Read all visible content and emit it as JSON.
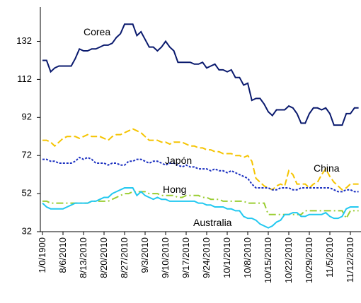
{
  "chart_data": {
    "type": "line",
    "categories": [
      "1/0/1900",
      null,
      null,
      null,
      null,
      "8/6/2010",
      null,
      null,
      null,
      null,
      "8/13/2010",
      null,
      null,
      null,
      null,
      "8/20/2010",
      null,
      null,
      null,
      null,
      "8/27/2010",
      null,
      null,
      null,
      null,
      "9/3/2010",
      null,
      null,
      null,
      null,
      "9/10/2010",
      null,
      null,
      null,
      null,
      "9/17/2010",
      null,
      null,
      null,
      null,
      "9/24/2010",
      null,
      null,
      null,
      null,
      "10/1/2010",
      null,
      null,
      null,
      null,
      "10/8/2010",
      null,
      null,
      null,
      null,
      "10/15/2010",
      null,
      null,
      null,
      null,
      "10/22/2010",
      null,
      null,
      null,
      null,
      "10/29/2010",
      null,
      null,
      null,
      null,
      "11/5/2010",
      null,
      null,
      null,
      null,
      "11/12/2010",
      null,
      null
    ],
    "series": [
      {
        "name": "Corea",
        "color": "#0a1a6e",
        "style": "solid",
        "values": [
          122,
          122,
          116,
          118,
          119,
          119,
          119,
          119,
          123,
          128,
          127,
          127,
          128,
          128,
          129,
          130,
          130,
          131,
          134,
          136,
          141,
          141,
          141,
          135,
          137,
          133,
          129,
          129,
          127,
          129,
          132,
          129,
          127,
          121,
          121,
          121,
          121,
          120,
          120,
          121,
          118,
          119,
          120,
          117,
          117,
          116,
          117,
          113,
          113,
          109,
          110,
          101,
          102,
          102,
          99,
          95,
          93,
          96,
          96,
          96,
          98,
          97,
          94,
          89,
          89,
          94,
          97,
          97,
          96,
          97,
          94,
          88,
          88,
          88,
          94,
          94,
          97,
          97
        ]
      },
      {
        "name": "China",
        "color": "#f5c400",
        "style": "dashed",
        "values": [
          80,
          80,
          79,
          77,
          79,
          81,
          82,
          82,
          82,
          81,
          82,
          83,
          82,
          82,
          82,
          81,
          80,
          82,
          83,
          83,
          84,
          85,
          86,
          85,
          84,
          82,
          80,
          80,
          80,
          79,
          79,
          78,
          79,
          79,
          79,
          78,
          77,
          77,
          76,
          76,
          75,
          75,
          74,
          74,
          73,
          73,
          73,
          72,
          72,
          71,
          72,
          69,
          60,
          58,
          56,
          55,
          54,
          56,
          57,
          56,
          64,
          62,
          57,
          57,
          57,
          55,
          57,
          58,
          62,
          65,
          61,
          58,
          56,
          54,
          55,
          57,
          57,
          57
        ]
      },
      {
        "name": "Japón",
        "color": "#1a2fc0",
        "style": "dotted",
        "values": [
          70,
          70,
          69,
          69,
          68,
          68,
          68,
          68,
          69,
          71,
          70,
          71,
          70,
          68,
          68,
          68,
          67,
          68,
          68,
          67,
          67,
          69,
          69,
          70,
          70,
          69,
          68,
          69,
          69,
          68,
          67,
          68,
          68,
          67,
          66,
          67,
          66,
          66,
          65,
          65,
          65,
          64,
          65,
          64,
          64,
          63,
          64,
          63,
          62,
          61,
          60,
          57,
          55,
          55,
          55,
          55,
          54,
          54,
          55,
          55,
          55,
          54,
          54,
          55,
          55,
          55,
          55,
          55,
          55,
          55,
          55,
          54,
          53,
          53,
          54,
          54,
          53,
          53
        ]
      },
      {
        "name": "Hong",
        "color": "#9acd32",
        "style": "dashdot",
        "values": [
          48,
          48,
          47,
          47,
          47,
          47,
          47,
          47,
          47,
          47,
          47,
          47,
          48,
          48,
          48,
          48,
          48,
          49,
          50,
          51,
          52,
          52,
          53,
          53,
          53,
          53,
          52,
          52,
          52,
          51,
          51,
          51,
          51,
          50,
          50,
          51,
          51,
          51,
          51,
          50,
          50,
          49,
          49,
          49,
          48,
          48,
          48,
          48,
          48,
          48,
          47,
          47,
          47,
          47,
          47,
          41,
          41,
          41,
          41,
          41,
          41,
          41,
          41,
          41,
          43,
          43,
          43,
          43,
          43,
          43,
          43,
          43,
          43,
          43,
          39,
          43,
          43,
          43
        ]
      },
      {
        "name": "Australia",
        "color": "#22c8f0",
        "style": "solid",
        "values": [
          47,
          45,
          44,
          44,
          44,
          44,
          45,
          46,
          47,
          47,
          47,
          47,
          48,
          48,
          49,
          50,
          50,
          52,
          53,
          54,
          55,
          55,
          55,
          51,
          53,
          51,
          50,
          49,
          50,
          49,
          49,
          48,
          48,
          48,
          48,
          48,
          48,
          48,
          47,
          47,
          46,
          46,
          45,
          45,
          45,
          44,
          44,
          43,
          43,
          40,
          39,
          39,
          38,
          36,
          35,
          34,
          35,
          37,
          38,
          41,
          41,
          42,
          42,
          40,
          40,
          41,
          41,
          41,
          41,
          42,
          40,
          39,
          39,
          40,
          44,
          45,
          45,
          45
        ]
      }
    ],
    "annotations": [
      "Corea",
      "China",
      "Japón",
      "Hong",
      "Australia"
    ],
    "ylim": [
      32,
      150
    ],
    "yticks": [
      32,
      52,
      72,
      92,
      112,
      132
    ],
    "grid": false
  }
}
